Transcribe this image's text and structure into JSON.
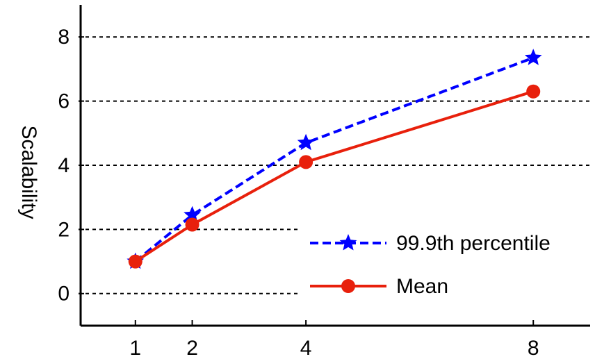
{
  "chart_data": {
    "type": "line",
    "y_label": "Scalability",
    "x": [
      1,
      2,
      4,
      8
    ],
    "series": [
      {
        "name": "99.9th percentile",
        "color": "#0000ff",
        "dash": true,
        "marker": "star",
        "values": [
          1.0,
          2.45,
          4.7,
          7.35
        ]
      },
      {
        "name": "Mean",
        "color": "#e8200c",
        "dash": false,
        "marker": "circle",
        "values": [
          1.0,
          2.15,
          4.1,
          6.3
        ]
      }
    ],
    "xlim": [
      0,
      9
    ],
    "ylim": [
      -1,
      9
    ],
    "xticks": [
      1,
      2,
      4,
      8
    ],
    "yticks": [
      0,
      2,
      4,
      6,
      8
    ],
    "grid": true,
    "legend": "lower right"
  }
}
